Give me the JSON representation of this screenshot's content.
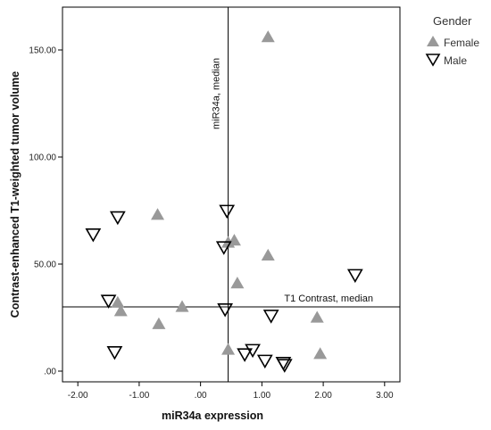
{
  "chart_data": {
    "type": "scatter",
    "xlabel": "miR34a expression",
    "ylabel": "Contrast-enhanced T1-weighted tumor volume",
    "xlim": [
      -2.25,
      3.25
    ],
    "ylim": [
      -5,
      170
    ],
    "x_ticks": [
      "-2.00",
      "-1.00",
      ".00",
      "1.00",
      "2.00",
      "3.00"
    ],
    "x_tick_values": [
      -2,
      -1,
      0,
      1,
      2,
      3
    ],
    "y_ticks": [
      ".00",
      "50.00",
      "100.00",
      "150.00"
    ],
    "y_tick_values": [
      0,
      50,
      100,
      150
    ],
    "grid": false,
    "reference_lines": {
      "vertical": {
        "value": 0.45,
        "label": "miR34a, median"
      },
      "horizontal": {
        "value": 30,
        "label": "T1 Contrast, median"
      }
    },
    "legend": {
      "title": "Gender",
      "placement": "right",
      "entries": [
        {
          "label": "Female",
          "marker": "triangle-up-filled",
          "color": "#999999"
        },
        {
          "label": "Male",
          "marker": "triangle-down-open",
          "color": "#000000"
        }
      ]
    },
    "series": [
      {
        "name": "Female",
        "marker": "triangle-up-filled",
        "color": "#999999",
        "points": [
          [
            1.1,
            156
          ],
          [
            -0.7,
            73
          ],
          [
            0.55,
            61
          ],
          [
            0.45,
            60
          ],
          [
            1.1,
            54
          ],
          [
            0.6,
            41
          ],
          [
            -1.35,
            32
          ],
          [
            -1.3,
            28
          ],
          [
            -0.3,
            30
          ],
          [
            -0.68,
            22
          ],
          [
            1.9,
            25
          ],
          [
            0.45,
            10
          ],
          [
            1.95,
            8
          ]
        ]
      },
      {
        "name": "Male",
        "marker": "triangle-down-open",
        "color": "#000000",
        "points": [
          [
            -1.75,
            64
          ],
          [
            -1.35,
            72
          ],
          [
            0.43,
            75
          ],
          [
            0.38,
            58
          ],
          [
            2.52,
            45
          ],
          [
            -1.5,
            33
          ],
          [
            0.4,
            29
          ],
          [
            1.15,
            26
          ],
          [
            -1.4,
            9
          ],
          [
            0.85,
            10
          ],
          [
            0.72,
            8
          ],
          [
            1.05,
            5
          ],
          [
            1.35,
            4
          ],
          [
            1.37,
            3
          ]
        ]
      }
    ]
  }
}
